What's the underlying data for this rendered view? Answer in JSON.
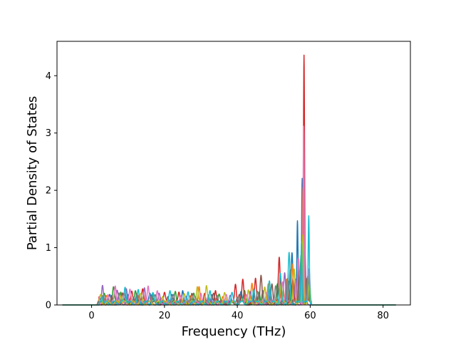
{
  "chart_data": {
    "type": "line",
    "title": "",
    "xlabel": "Frequency (THz)",
    "ylabel": "Partial Density of States",
    "xlim": [
      -9.5,
      87.5
    ],
    "ylim": [
      0,
      4.6
    ],
    "xticks": [
      0,
      20,
      40,
      60,
      80
    ],
    "yticks": [
      0,
      1,
      2,
      3,
      4
    ],
    "grid": false,
    "legend": "none",
    "x_range": [
      -8.0,
      83.5
    ],
    "series": [
      {
        "color": "#1f77b4",
        "peaks": [
          [
            5,
            0.12
          ],
          [
            10,
            0.18
          ],
          [
            16,
            0.14
          ],
          [
            22,
            0.16
          ],
          [
            25,
            0.25
          ],
          [
            33,
            0.16
          ],
          [
            41,
            0.18
          ],
          [
            47,
            0.25
          ],
          [
            52,
            0.35
          ],
          [
            55,
            0.9
          ],
          [
            56.5,
            1.4
          ],
          [
            57.8,
            2.2
          ],
          [
            59.2,
            0.4
          ]
        ]
      },
      {
        "color": "#ff7f0e",
        "peaks": [
          [
            4,
            0.1
          ],
          [
            9,
            0.2
          ],
          [
            13,
            0.15
          ],
          [
            19,
            0.12
          ],
          [
            27,
            0.12
          ],
          [
            29.5,
            0.32
          ],
          [
            36,
            0.14
          ],
          [
            44,
            0.35
          ],
          [
            48.5,
            0.3
          ],
          [
            53.5,
            0.45
          ],
          [
            55,
            0.65
          ],
          [
            58,
            2.0
          ],
          [
            59.5,
            0.5
          ]
        ]
      },
      {
        "color": "#2ca02c",
        "peaks": [
          [
            3.5,
            0.15
          ],
          [
            6,
            0.25
          ],
          [
            8,
            0.22
          ],
          [
            12,
            0.2
          ],
          [
            17,
            0.18
          ],
          [
            23,
            0.2
          ],
          [
            28,
            0.16
          ],
          [
            35,
            0.12
          ],
          [
            42,
            0.2
          ],
          [
            46,
            0.22
          ],
          [
            51,
            0.3
          ],
          [
            54,
            0.35
          ],
          [
            57.5,
            0.8
          ],
          [
            59.5,
            0.35
          ]
        ]
      },
      {
        "color": "#d62728",
        "peaks": [
          [
            2,
            0.08
          ],
          [
            11,
            0.18
          ],
          [
            14,
            0.22
          ],
          [
            20,
            0.16
          ],
          [
            24,
            0.18
          ],
          [
            31,
            0.2
          ],
          [
            34,
            0.25
          ],
          [
            39.5,
            0.35
          ],
          [
            41.5,
            0.38
          ],
          [
            45,
            0.42
          ],
          [
            51.5,
            0.82
          ],
          [
            55.3,
            0.45
          ],
          [
            58.3,
            4.35
          ],
          [
            59.4,
            0.3
          ]
        ]
      },
      {
        "color": "#9467bd",
        "peaks": [
          [
            3,
            0.34
          ],
          [
            7,
            0.2
          ],
          [
            9.5,
            0.25
          ],
          [
            14.5,
            0.3
          ],
          [
            18.5,
            0.14
          ],
          [
            26,
            0.15
          ],
          [
            32,
            0.15
          ],
          [
            38,
            0.12
          ],
          [
            43.5,
            0.2
          ],
          [
            49,
            0.25
          ],
          [
            53,
            0.5
          ],
          [
            56,
            0.4
          ],
          [
            58.5,
            0.9
          ]
        ]
      },
      {
        "color": "#8c564b",
        "peaks": [
          [
            5.5,
            0.16
          ],
          [
            8.5,
            0.18
          ],
          [
            12.5,
            0.16
          ],
          [
            16.5,
            0.15
          ],
          [
            21,
            0.14
          ],
          [
            27.5,
            0.15
          ],
          [
            33.5,
            0.14
          ],
          [
            40.5,
            0.16
          ],
          [
            46.5,
            0.45
          ],
          [
            49.5,
            0.3
          ],
          [
            54.5,
            0.55
          ],
          [
            57,
            0.55
          ],
          [
            59,
            0.45
          ]
        ]
      },
      {
        "color": "#e377c2",
        "peaks": [
          [
            4.5,
            0.18
          ],
          [
            6.5,
            0.3
          ],
          [
            10.5,
            0.22
          ],
          [
            15.5,
            0.28
          ],
          [
            18,
            0.2
          ],
          [
            24.5,
            0.15
          ],
          [
            30,
            0.2
          ],
          [
            37,
            0.16
          ],
          [
            42.5,
            0.18
          ],
          [
            48,
            0.2
          ],
          [
            52.5,
            0.4
          ],
          [
            56.8,
            0.75
          ],
          [
            58.2,
            3.1
          ],
          [
            59.7,
            0.6
          ]
        ]
      },
      {
        "color": "#7f7f7f",
        "peaks": [
          [
            3,
            0.1
          ],
          [
            7.5,
            0.14
          ],
          [
            11.5,
            0.12
          ],
          [
            17.5,
            0.12
          ],
          [
            22.5,
            0.14
          ],
          [
            28.5,
            0.12
          ],
          [
            34.5,
            0.12
          ],
          [
            40,
            0.14
          ],
          [
            45.5,
            0.2
          ],
          [
            50.5,
            0.28
          ],
          [
            53.8,
            0.42
          ],
          [
            57.2,
            0.5
          ],
          [
            59.3,
            0.5
          ]
        ]
      },
      {
        "color": "#bcbd22",
        "peaks": [
          [
            2.5,
            0.12
          ],
          [
            8,
            0.16
          ],
          [
            13.5,
            0.14
          ],
          [
            19.5,
            0.15
          ],
          [
            25.5,
            0.14
          ],
          [
            29,
            0.3
          ],
          [
            31.5,
            0.3
          ],
          [
            36.5,
            0.15
          ],
          [
            43,
            0.22
          ],
          [
            47.5,
            0.28
          ],
          [
            52,
            0.35
          ],
          [
            55.6,
            0.6
          ],
          [
            58,
            1.2
          ],
          [
            59.8,
            0.3
          ]
        ]
      },
      {
        "color": "#17becf",
        "peaks": [
          [
            2.8,
            0.14
          ],
          [
            9.2,
            0.3
          ],
          [
            12.8,
            0.2
          ],
          [
            16.8,
            0.16
          ],
          [
            21.5,
            0.18
          ],
          [
            26.5,
            0.2
          ],
          [
            32.5,
            0.18
          ],
          [
            38.5,
            0.18
          ],
          [
            44.5,
            0.28
          ],
          [
            48.8,
            0.42
          ],
          [
            51.8,
            0.5
          ],
          [
            54.2,
            0.85
          ],
          [
            57.6,
            1.1
          ],
          [
            59.6,
            1.55
          ]
        ]
      }
    ]
  }
}
